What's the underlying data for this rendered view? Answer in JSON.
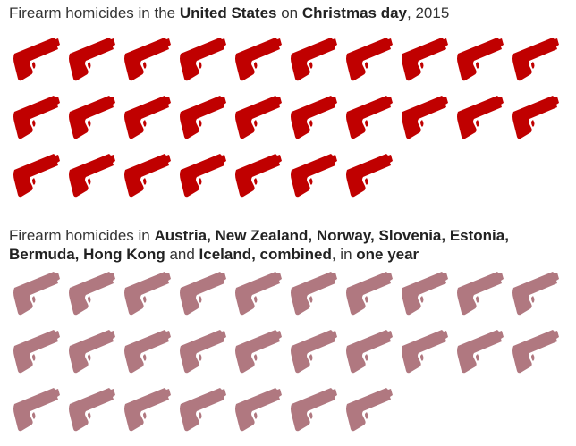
{
  "chart_data": [
    {
      "type": "pictogram",
      "title_parts": [
        {
          "text": "Firearm homicides in the ",
          "bold": false
        },
        {
          "text": "United States",
          "bold": true
        },
        {
          "text": " on ",
          "bold": false
        },
        {
          "text": "Christmas day",
          "bold": true
        },
        {
          "text": ", 2015",
          "bold": false
        }
      ],
      "count": 27,
      "color": "#c00000",
      "icon": "pistol-icon"
    },
    {
      "type": "pictogram",
      "title_parts": [
        {
          "text": "Firearm homicides in ",
          "bold": false
        },
        {
          "text": "Austria, New Zealand, Norway, Slovenia, Estonia, Bermuda, Hong Kong",
          "bold": true
        },
        {
          "text": " and ",
          "bold": false
        },
        {
          "text": "Iceland, combined",
          "bold": true
        },
        {
          "text": ", in ",
          "bold": false
        },
        {
          "text": "one year",
          "bold": true
        }
      ],
      "count": 27,
      "color": "#b07880",
      "icon": "pistol-icon"
    }
  ]
}
